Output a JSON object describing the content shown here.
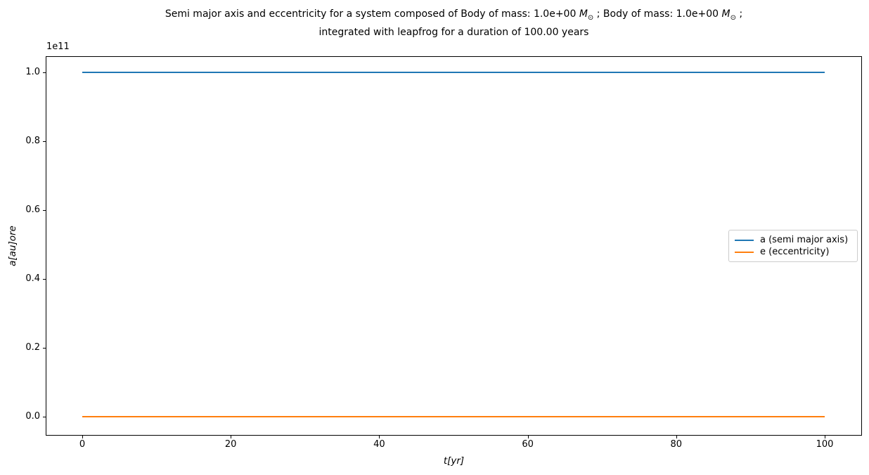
{
  "figure": {
    "title_line1_parts": {
      "pre": "Semi major axis and eccentricity for a system composed of Body of mass: 1.0e+00 ",
      "m_symbol_1": "M",
      "sun_symbol_1": "⊙",
      "mid": " ; Body of mass: 1.0e+00 ",
      "m_symbol_2": "M",
      "sun_symbol_2": "⊙",
      "end": " ;"
    },
    "title_line2": "integrated with leapfrog for a duration of 100.00 years"
  },
  "chart_data": {
    "type": "line",
    "title": "Semi major axis and eccentricity for a system composed of Body of mass: 1.0e+00 M⊙ ; Body of mass: 1.0e+00 M⊙ ; integrated with leapfrog for a duration of 100.00 years",
    "xlabel": "t[yr]",
    "ylabel": "a[au]ore",
    "y_offset_label": "1e11",
    "xlim": [
      -5,
      105
    ],
    "ylim": [
      -5000000000.0,
      105000000000.0
    ],
    "grid": false,
    "legend_position": "center right",
    "xticks": [
      0,
      20,
      40,
      60,
      80,
      100
    ],
    "xtick_labels": [
      "0",
      "20",
      "40",
      "60",
      "80",
      "100"
    ],
    "yticks": [
      0.0,
      0.2,
      0.4,
      0.6,
      0.8,
      1.0
    ],
    "ytick_labels": [
      "0.0",
      "0.2",
      "0.4",
      "0.6",
      "0.8",
      "1.0"
    ],
    "series": [
      {
        "name": "a (semi major axis)",
        "color": "#1f77b4",
        "x": [
          0,
          100
        ],
        "values": [
          100000000000.0,
          100000000000.0
        ]
      },
      {
        "name": "e (eccentricity)",
        "color": "#ff7f0e",
        "x": [
          0,
          100
        ],
        "values": [
          0,
          0
        ]
      }
    ]
  }
}
